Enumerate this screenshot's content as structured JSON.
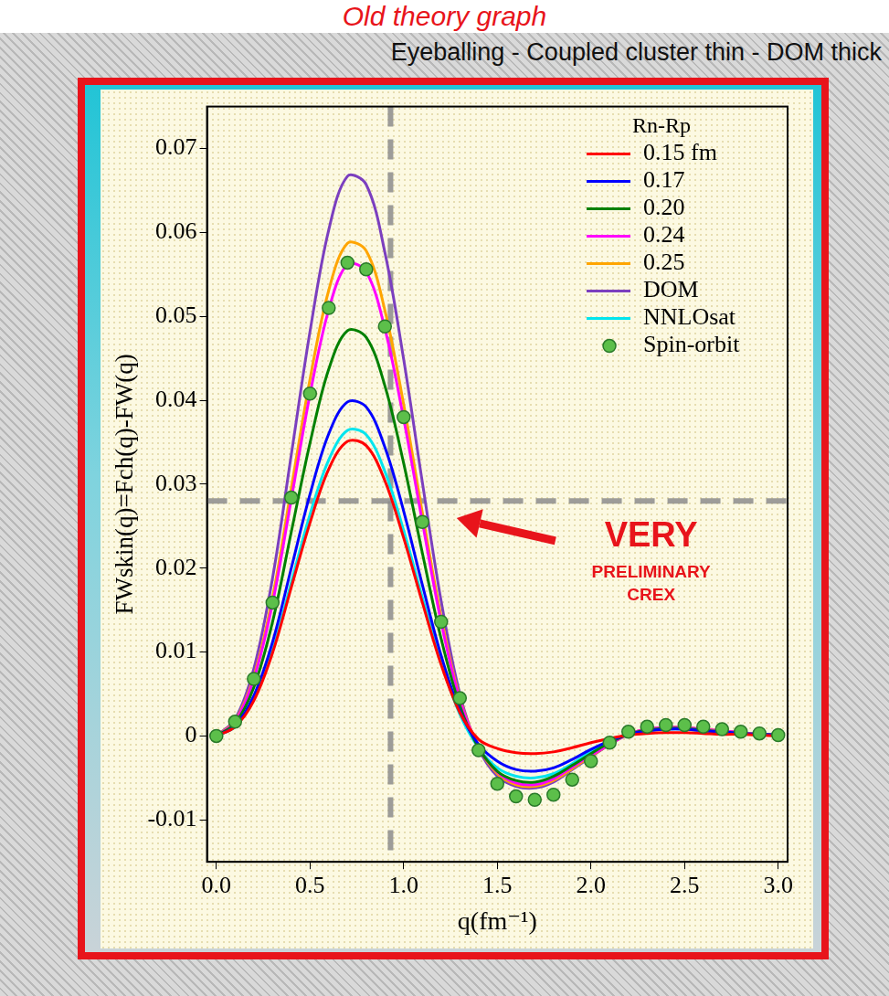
{
  "chart_data": {
    "type": "line",
    "title": "Old theory graph",
    "subtitle": "Eyeballing - Coupled cluster thin - DOM thick",
    "xlabel": "q(fm⁻¹)",
    "ylabel": "FWskin(q)=Fch(q)-FW(q)",
    "legend_title": "Rn-Rp",
    "legend": "upper right",
    "grid": false,
    "x": [
      0,
      0.1,
      0.2,
      0.3,
      0.4,
      0.5,
      0.6,
      0.7,
      0.8,
      0.9,
      1.0,
      1.1,
      1.2,
      1.3,
      1.4,
      1.5,
      1.6,
      1.7,
      1.8,
      1.9,
      2.0,
      2.1,
      2.2,
      2.3,
      2.4,
      2.5,
      2.6,
      2.7,
      2.8,
      2.9,
      3.0
    ],
    "series": [
      {
        "name": "0.15 fm",
        "color": "#ff0000",
        "line_style": "solid",
        "values": [
          0,
          0.0011,
          0.0042,
          0.0099,
          0.0177,
          0.0254,
          0.0318,
          0.0351,
          0.0346,
          0.0304,
          0.0236,
          0.0159,
          0.0085,
          0.0028,
          -0.0004,
          -0.0015,
          -0.002,
          -0.0021,
          -0.0019,
          -0.0014,
          -0.0008,
          -0.0003,
          0.0001,
          0.0003,
          0.0004,
          0.0004,
          0.0003,
          0.0002,
          0.0002,
          0.0001,
          0
        ]
      },
      {
        "name": "0.17",
        "color": "#0000ff",
        "line_style": "solid",
        "values": [
          0,
          0.0012,
          0.0048,
          0.0112,
          0.02,
          0.0288,
          0.036,
          0.0398,
          0.0392,
          0.0344,
          0.0268,
          0.018,
          0.0096,
          0.003,
          -0.001,
          -0.003,
          -0.004,
          -0.0042,
          -0.0038,
          -0.0028,
          -0.0016,
          -0.0006,
          0.0002,
          0.0006,
          0.0008,
          0.0008,
          0.0006,
          0.0005,
          0.0003,
          0.0002,
          0.0001
        ]
      },
      {
        "name": "0.20",
        "color": "#008000",
        "line_style": "solid",
        "values": [
          0,
          0.0015,
          0.0058,
          0.0136,
          0.0243,
          0.0349,
          0.0437,
          0.0483,
          0.0475,
          0.0417,
          0.0325,
          0.0218,
          0.0116,
          0.0036,
          -0.0014,
          -0.0042,
          -0.0053,
          -0.0055,
          -0.0048,
          -0.0035,
          -0.0021,
          -0.0008,
          0.0002,
          0.0007,
          0.0009,
          0.0009,
          0.0007,
          0.0005,
          0.0003,
          0.0002,
          0.0001
        ]
      },
      {
        "name": "0.24",
        "color": "#ff00ff",
        "line_style": "solid",
        "values": [
          0,
          0.0017,
          0.0068,
          0.0158,
          0.0282,
          0.0407,
          0.0508,
          0.0562,
          0.0553,
          0.0485,
          0.0378,
          0.0255,
          0.0136,
          0.0043,
          -0.0013,
          -0.0043,
          -0.0056,
          -0.0058,
          -0.0051,
          -0.0037,
          -0.0023,
          -0.001,
          0.0002,
          0.0008,
          0.001,
          0.001,
          0.0008,
          0.0006,
          0.0004,
          0.0002,
          0.0001
        ]
      },
      {
        "name": "0.25",
        "color": "#ffa500",
        "line_style": "solid",
        "values": [
          0,
          0.0018,
          0.0071,
          0.0165,
          0.0295,
          0.0425,
          0.0531,
          0.0587,
          0.0578,
          0.0507,
          0.0395,
          0.0266,
          0.0142,
          0.0045,
          -0.0013,
          -0.0045,
          -0.0058,
          -0.006,
          -0.0053,
          -0.0039,
          -0.0024,
          -0.001,
          0.0002,
          0.0008,
          0.001,
          0.001,
          0.0008,
          0.0006,
          0.0004,
          0.0002,
          0.0001
        ]
      },
      {
        "name": "DOM",
        "color": "#7b3fbf",
        "line_style": "solid",
        "values": [
          0,
          0.002,
          0.008,
          0.0188,
          0.0335,
          0.0482,
          0.0603,
          0.0667,
          0.0657,
          0.0576,
          0.0449,
          0.0302,
          0.0161,
          0.005,
          -0.0015,
          -0.0048,
          -0.006,
          -0.0062,
          -0.0055,
          -0.004,
          -0.0025,
          -0.001,
          0.0002,
          0.0008,
          0.001,
          0.001,
          0.0008,
          0.0006,
          0.0004,
          0.0002,
          0.0001
        ]
      },
      {
        "name": "NNLOsat",
        "color": "#00e5ee",
        "line_style": "solid",
        "values": [
          0,
          0.0011,
          0.0044,
          0.0102,
          0.0183,
          0.0264,
          0.0329,
          0.0364,
          0.0359,
          0.0315,
          0.0245,
          0.0165,
          0.0088,
          0.0026,
          -0.0014,
          -0.0038,
          -0.0048,
          -0.005,
          -0.0045,
          -0.0033,
          -0.0019,
          -0.0007,
          0.0002,
          0.0006,
          0.0008,
          0.0008,
          0.0006,
          0.0005,
          0.0003,
          0.0002,
          0.0001
        ]
      },
      {
        "name": "Spin-orbit",
        "color": "#5cbf4a",
        "line_style": "none",
        "marker": "circle",
        "values": [
          0,
          0.0017,
          0.0068,
          0.0159,
          0.0284,
          0.0408,
          0.051,
          0.0564,
          0.0556,
          0.0488,
          0.038,
          0.0255,
          0.0136,
          0.0045,
          -0.0017,
          -0.0057,
          -0.0072,
          -0.0076,
          -0.007,
          -0.0052,
          -0.003,
          -0.0008,
          0.0005,
          0.0011,
          0.0013,
          0.0013,
          0.0011,
          0.0008,
          0.0005,
          0.0003,
          0.0001
        ]
      }
    ],
    "xlim": [
      -0.05,
      3.05
    ],
    "xticks": [
      {
        "value": 0,
        "label": "0.0"
      },
      0.5,
      {
        "value": 1,
        "label": "1.0"
      },
      1.5,
      {
        "value": 2,
        "label": "2.0"
      },
      2.5,
      {
        "value": 3,
        "label": "3.0"
      }
    ],
    "ylim": [
      -0.015,
      0.075
    ],
    "yticks": [
      -0.01,
      0,
      0.01,
      0.02,
      0.03,
      0.04,
      0.05,
      0.06,
      0.07
    ],
    "vlines": [
      0.93
    ],
    "hlines": [
      0.028
    ],
    "annotations": [
      {
        "text": [
          "VERY",
          "PRELIMINARY",
          "CREX"
        ],
        "color": "#e8141b"
      }
    ]
  }
}
